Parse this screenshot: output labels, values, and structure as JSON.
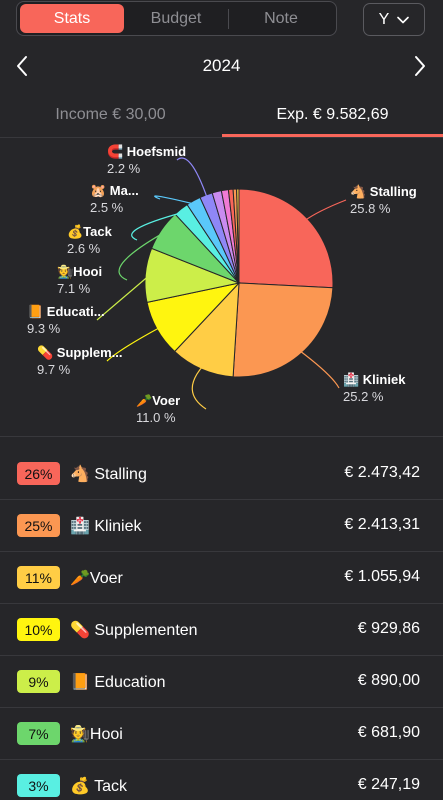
{
  "top_bar": {
    "tabs": [
      {
        "label": "Stats",
        "active": true
      },
      {
        "label": "Budget",
        "active": false
      },
      {
        "label": "Note",
        "active": false
      }
    ],
    "period": {
      "value": "Y",
      "icon": "chevron-down-icon"
    }
  },
  "year_nav": {
    "year": "2024",
    "prev_icon": "chevron-left-icon",
    "next_icon": "chevron-right-icon"
  },
  "type_tabs": {
    "income": "Income € 30,00",
    "expense": "Exp. € 9.582,69",
    "active": "expense"
  },
  "colors": {
    "accent": "#f8665a",
    "background": "#262629"
  },
  "chart_data": {
    "type": "pie",
    "slices": [
      {
        "label": "🐴 Stalling",
        "pct_label": "25.8 %",
        "value": 25.8,
        "color": "#f8665a"
      },
      {
        "label": "🏥 Kliniek",
        "pct_label": "25.2 %",
        "value": 25.2,
        "color": "#fb9752"
      },
      {
        "label": "🥕Voer",
        "pct_label": "11.0 %",
        "value": 11.0,
        "color": "#ffcd45"
      },
      {
        "label": "💊 Supplem...",
        "pct_label": "9.7 %",
        "value": 9.7,
        "color": "#fff50f"
      },
      {
        "label": "📙 Educati...",
        "pct_label": "9.3 %",
        "value": 9.3,
        "color": "#ccee49"
      },
      {
        "label": "🧑‍🌾Hooi",
        "pct_label": "7.1 %",
        "value": 7.1,
        "color": "#6dd66c"
      },
      {
        "label": "💰Tack",
        "pct_label": "2.6 %",
        "value": 2.6,
        "color": "#59efe2"
      },
      {
        "label": "🐹 Ma...",
        "pct_label": "2.5 %",
        "value": 2.5,
        "color": "#5ac8fa"
      },
      {
        "label": "🧲 Hoefsmid",
        "pct_label": "2.2 %",
        "value": 2.2,
        "color": "#8f87f7"
      },
      {
        "label": "",
        "pct_label": "",
        "value": 1.6,
        "color": "#c98bf0"
      },
      {
        "label": "",
        "pct_label": "",
        "value": 1.2,
        "color": "#f07ad5"
      },
      {
        "label": "",
        "pct_label": "",
        "value": 0.8,
        "color": "#f8665a"
      },
      {
        "label": "",
        "pct_label": "",
        "value": 0.6,
        "color": "#fb9752"
      },
      {
        "label": "",
        "pct_label": "",
        "value": 0.4,
        "color": "#ffcd45"
      }
    ]
  },
  "categories": [
    {
      "pct": "26%",
      "label": "🐴 Stalling",
      "amount": "€ 2.473,42",
      "color": "#f8665a"
    },
    {
      "pct": "25%",
      "label": "🏥 Kliniek",
      "amount": "€ 2.413,31",
      "color": "#fb9752"
    },
    {
      "pct": "11%",
      "label": "🥕Voer",
      "amount": "€ 1.055,94",
      "color": "#ffcd45"
    },
    {
      "pct": "10%",
      "label": "💊 Supplementen",
      "amount": "€ 929,86",
      "color": "#fff50f"
    },
    {
      "pct": "9%",
      "label": "📙 Education",
      "amount": "€ 890,00",
      "color": "#ccee49"
    },
    {
      "pct": "7%",
      "label": "🧑‍🌾Hooi",
      "amount": "€ 681,90",
      "color": "#6dd66c"
    },
    {
      "pct": "3%",
      "label": "💰 Tack",
      "amount": "€ 247,19",
      "color": "#59efe2"
    }
  ]
}
